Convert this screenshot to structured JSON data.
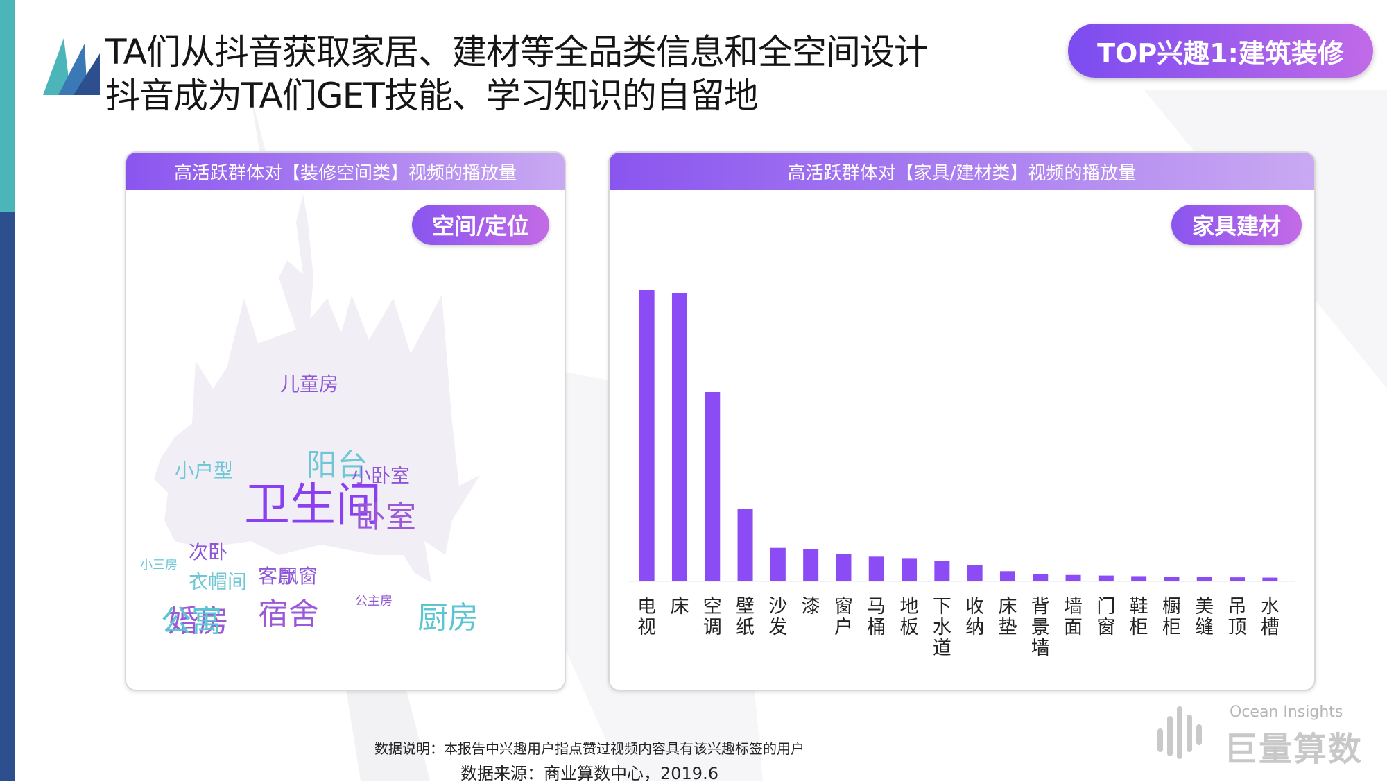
{
  "header": {
    "title_line1": "TA们从抖音获取家居、建材等全品类信息和全空间设计",
    "title_line2": "抖音成为TA们GET技能、学习知识的自留地",
    "top_badge": "TOP兴趣1:建筑装修"
  },
  "left_panel": {
    "title": "高活跃群体对【装修空间类】视频的播放量",
    "badge": "空间/定位",
    "words": [
      {
        "text": "卫生间",
        "size": "xl",
        "color": "#8a3ff0"
      },
      {
        "text": "宿舍",
        "size": "l",
        "color": "#9b59d8"
      },
      {
        "text": "厨房",
        "size": "l",
        "color": "#5bc5d2"
      },
      {
        "text": "阳台",
        "size": "l",
        "color": "#6fc7d6"
      },
      {
        "text": "卧室",
        "size": "l",
        "color": "#9b59d8"
      },
      {
        "text": "婚房",
        "size": "l",
        "color": "#9b59d8"
      },
      {
        "text": "公寓",
        "size": "l",
        "color": "#5bc5d2"
      },
      {
        "text": "客厅",
        "size": "m",
        "color": "#8e57d6"
      },
      {
        "text": "飘窗",
        "size": "m",
        "color": "#8e57d6"
      },
      {
        "text": "儿童房",
        "size": "m",
        "color": "#8e57d6"
      },
      {
        "text": "小户型",
        "size": "m",
        "color": "#6fc7d6"
      },
      {
        "text": "次卧",
        "size": "m",
        "color": "#8e57d6"
      },
      {
        "text": "衣帽间",
        "size": "m",
        "color": "#6fc7d6"
      },
      {
        "text": "小卧室",
        "size": "m",
        "color": "#8e57d6"
      },
      {
        "text": "公主房",
        "size": "s",
        "color": "#8e57d6"
      },
      {
        "text": "小三房",
        "size": "s",
        "color": "#6fc7d6"
      }
    ]
  },
  "right_panel": {
    "title": "高活跃群体对【家具/建材类】视频的播放量",
    "badge": "家具建材"
  },
  "chart_data": {
    "type": "bar",
    "categories": [
      "电视",
      "床",
      "空调",
      "壁纸",
      "沙发",
      "漆",
      "窗户",
      "马桶",
      "地板",
      "下水道",
      "收纳",
      "床垫",
      "背景墙",
      "墙面",
      "门窗",
      "鞋柜",
      "橱柜",
      "美缝",
      "吊顶",
      "水槽"
    ],
    "values": [
      100,
      99,
      65,
      25,
      11.5,
      11,
      9.5,
      8.5,
      8,
      7,
      5.5,
      3.5,
      2.6,
      2.2,
      2,
      1.8,
      1.6,
      1.5,
      1.4,
      1.3
    ],
    "ylim": [
      0,
      100
    ],
    "color": "#8b4cf6",
    "grid": false,
    "title": "",
    "xlabel": "",
    "ylabel": ""
  },
  "footer": {
    "note": "数据说明：本报告中兴趣用户指点赞过视频内容具有该兴趣标签的用户",
    "source": "数据来源：商业算数中心，2019.6"
  },
  "brand": {
    "en": "Ocean Insights",
    "cn": "巨量算数"
  }
}
